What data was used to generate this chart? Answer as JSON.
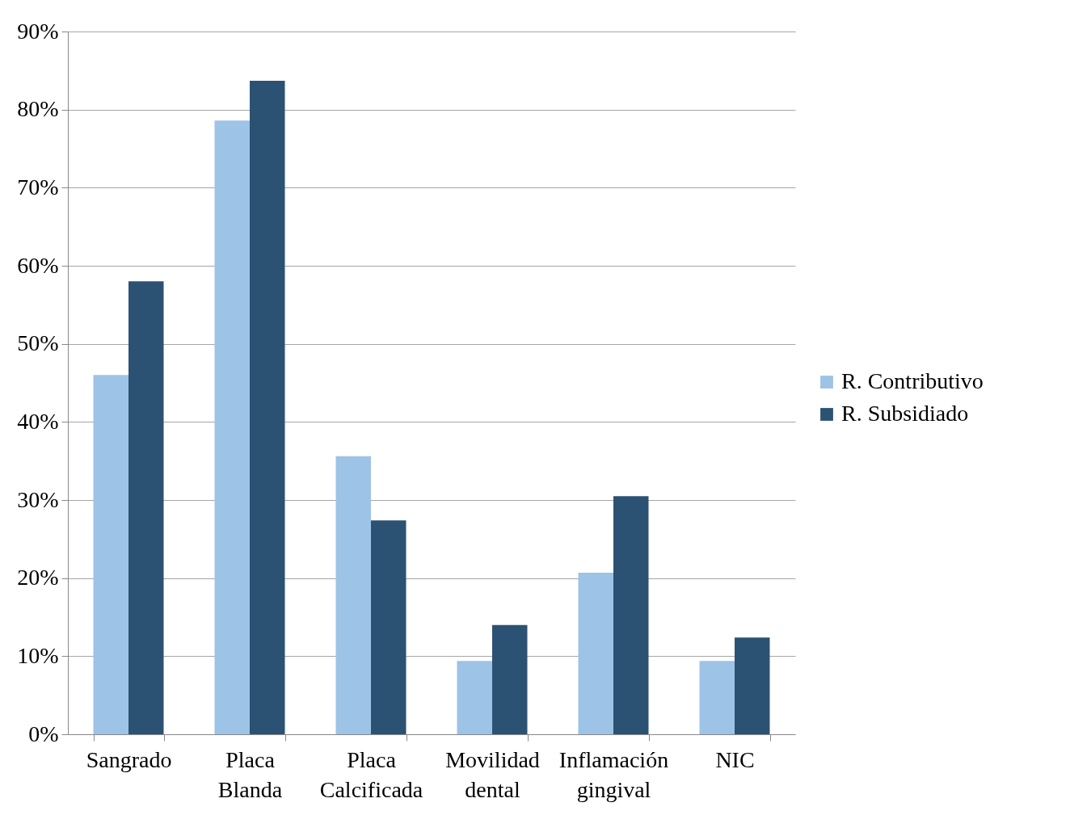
{
  "chart_data": {
    "type": "bar",
    "categories": [
      "Sangrado",
      "Placa Blanda",
      "Placa Calcificada",
      "Movilidad dental",
      "Inflamación gingival",
      "NIC"
    ],
    "series": [
      {
        "name": "R. Contributivo",
        "color": "#9dc3e6",
        "values": [
          46,
          78.6,
          35.6,
          9.4,
          20.7,
          9.4
        ]
      },
      {
        "name": "R. Subsidiado",
        "color": "#2c5273",
        "values": [
          58,
          83.7,
          27.4,
          14,
          30.5,
          12.4
        ]
      }
    ],
    "ylim": [
      0,
      90
    ],
    "yticks": [
      {
        "value": 0,
        "label": "0%"
      },
      {
        "value": 10,
        "label": "10%"
      },
      {
        "value": 20,
        "label": "20%"
      },
      {
        "value": 30,
        "label": "30%"
      },
      {
        "value": 40,
        "label": "40%"
      },
      {
        "value": 50,
        "label": "50%"
      },
      {
        "value": 60,
        "label": "60%"
      },
      {
        "value": 70,
        "label": "70%"
      },
      {
        "value": 80,
        "label": "80%"
      },
      {
        "value": 90,
        "label": "90%"
      }
    ],
    "grid": "y",
    "legend": "right"
  }
}
